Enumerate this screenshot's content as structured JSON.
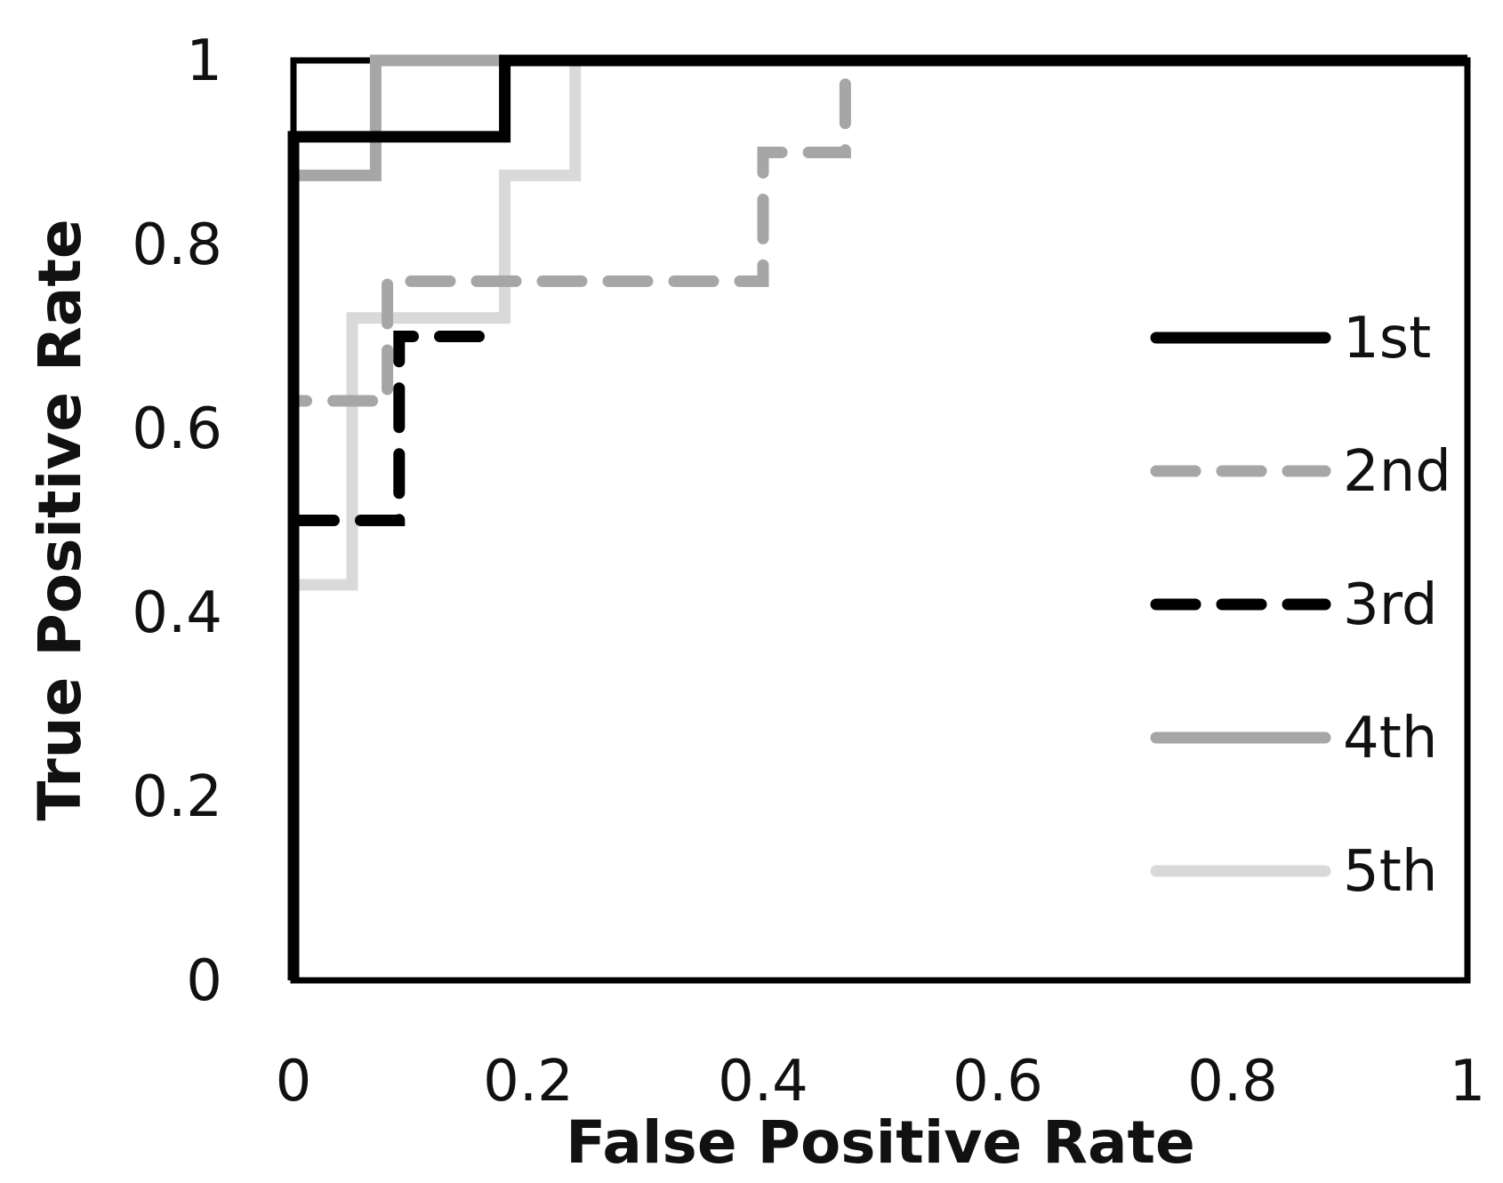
{
  "chart_data": {
    "type": "line",
    "title": "",
    "xlabel": "False Positive Rate",
    "ylabel": "True Positive Rate",
    "xlim": [
      0,
      1
    ],
    "ylim": [
      0,
      1
    ],
    "xticks": [
      "0",
      "0.2",
      "0.4",
      "0.6",
      "0.8",
      "1"
    ],
    "yticks": [
      "0",
      "0.2",
      "0.4",
      "0.6",
      "0.8",
      "1"
    ],
    "grid": false,
    "legend_position": "right",
    "series": [
      {
        "name": "1st",
        "color": "#000000",
        "dash": "solid",
        "x": [
          0,
          0,
          0.18,
          0.18,
          1
        ],
        "y": [
          0,
          0.917,
          0.917,
          1,
          1
        ]
      },
      {
        "name": "2nd",
        "color": "#a6a6a6",
        "dash": "dashed",
        "x": [
          0,
          0,
          0.08,
          0.08,
          0.08,
          0.4,
          0.4,
          0.47,
          0.47
        ],
        "y": [
          0.53,
          0.63,
          0.63,
          0.73,
          0.76,
          0.76,
          0.9,
          0.9,
          0.98
        ]
      },
      {
        "name": "3rd",
        "color": "#000000",
        "dash": "dashed",
        "x": [
          0,
          0,
          0.09,
          0.09,
          0.18
        ],
        "y": [
          0.43,
          0.5,
          0.5,
          0.7,
          0.7
        ]
      },
      {
        "name": "4th",
        "color": "#a6a6a6",
        "dash": "solid",
        "x": [
          0,
          0.07,
          0.07,
          1
        ],
        "y": [
          0.875,
          0.875,
          1,
          1
        ]
      },
      {
        "name": "5th",
        "color": "#d9d9d9",
        "dash": "solid",
        "x": [
          0,
          0.05,
          0.05,
          0.18,
          0.18,
          0.24,
          0.24,
          1
        ],
        "y": [
          0.43,
          0.43,
          0.72,
          0.72,
          0.875,
          0.875,
          1,
          1
        ]
      }
    ]
  }
}
